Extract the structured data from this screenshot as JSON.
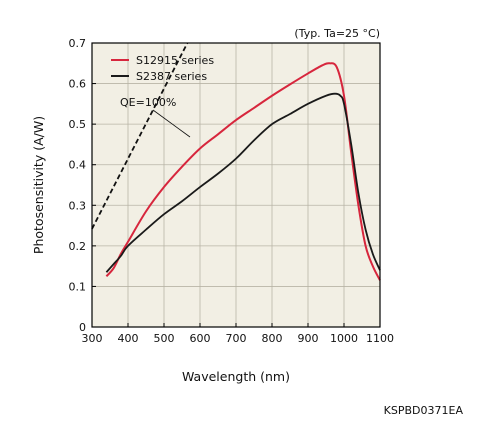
{
  "chart_data": {
    "type": "line",
    "note": "(Typ. Ta=25 °C)",
    "xlabel": "Wavelength (nm)",
    "ylabel": "Photosensitivity (A/W)",
    "xlim": [
      300,
      1100
    ],
    "ylim": [
      0,
      0.7
    ],
    "x_ticks": [
      "300",
      "400",
      "500",
      "600",
      "700",
      "800",
      "900",
      "1000",
      "1100"
    ],
    "y_ticks": [
      "0",
      "0.1",
      "0.2",
      "0.3",
      "0.4",
      "0.5",
      "0.6",
      "0.7"
    ],
    "grid": true,
    "legend_position": "top-left",
    "series": [
      {
        "name": "S12915 series",
        "color": "#d7263d",
        "x": [
          340,
          360,
          380,
          400,
          450,
          500,
          550,
          600,
          650,
          700,
          750,
          800,
          850,
          900,
          940,
          960,
          980,
          1000,
          1020,
          1040,
          1060,
          1080,
          1100
        ],
        "y": [
          0.125,
          0.145,
          0.18,
          0.21,
          0.285,
          0.345,
          0.395,
          0.44,
          0.475,
          0.51,
          0.54,
          0.57,
          0.598,
          0.625,
          0.645,
          0.65,
          0.64,
          0.57,
          0.43,
          0.3,
          0.2,
          0.15,
          0.115
        ]
      },
      {
        "name": "S2387 series",
        "color": "#1a1a1a",
        "x": [
          340,
          360,
          380,
          400,
          450,
          500,
          550,
          600,
          650,
          700,
          750,
          800,
          850,
          900,
          950,
          975,
          990,
          1000,
          1020,
          1040,
          1060,
          1080,
          1100
        ],
        "y": [
          0.135,
          0.155,
          0.175,
          0.2,
          0.24,
          0.278,
          0.31,
          0.345,
          0.378,
          0.415,
          0.46,
          0.5,
          0.525,
          0.55,
          0.57,
          0.575,
          0.57,
          0.55,
          0.45,
          0.33,
          0.24,
          0.18,
          0.14
        ]
      }
    ],
    "reference_line": {
      "label": "QE=100%",
      "x": [
        300,
        565
      ],
      "y": [
        0.2419,
        0.7
      ]
    }
  },
  "doc_code": "KSPBD0371EA",
  "colors": {
    "plot_background": "#f2efe4",
    "grid": "#b8b4a6",
    "frame": "#000000"
  }
}
